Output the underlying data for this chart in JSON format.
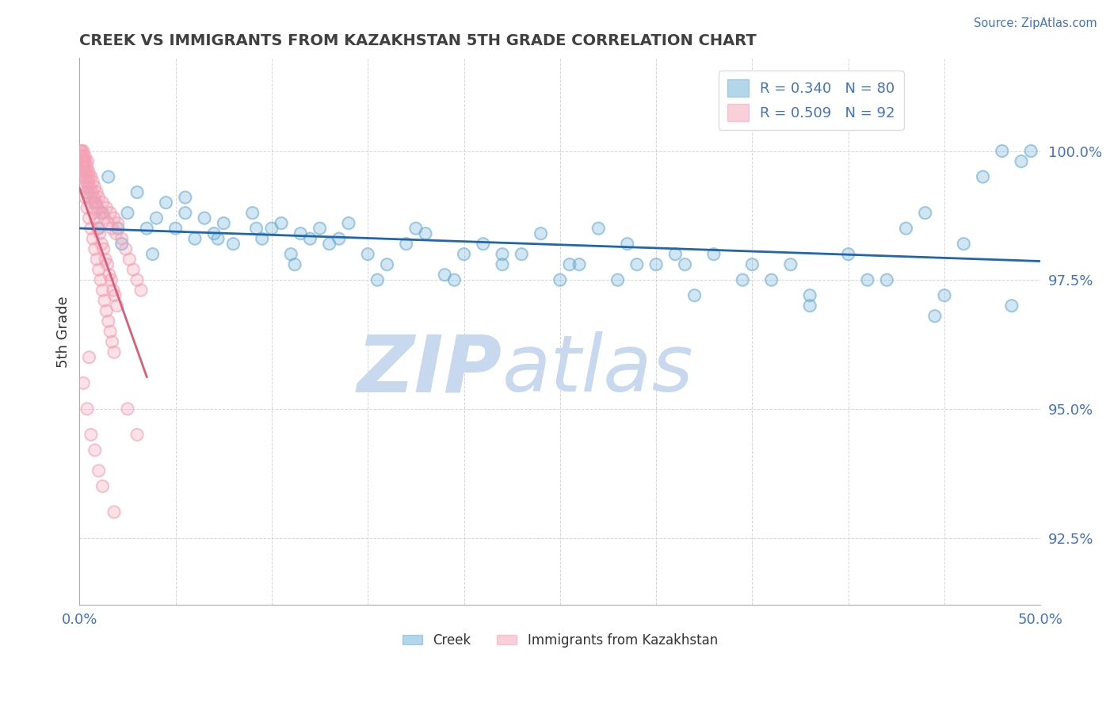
{
  "title": "CREEK VS IMMIGRANTS FROM KAZAKHSTAN 5TH GRADE CORRELATION CHART",
  "source": "Source: ZipAtlas.com",
  "ylabel": "5th Grade",
  "xlim": [
    0.0,
    50.0
  ],
  "ylim": [
    91.2,
    101.8
  ],
  "yticks": [
    92.5,
    95.0,
    97.5,
    100.0
  ],
  "ytick_labels": [
    "92.5%",
    "95.0%",
    "97.5%",
    "100.0%"
  ],
  "xticks": [
    0.0,
    5.0,
    10.0,
    15.0,
    20.0,
    25.0,
    30.0,
    35.0,
    40.0,
    45.0,
    50.0
  ],
  "xtick_labels": [
    "0.0%",
    "",
    "",
    "",
    "",
    "",
    "",
    "",
    "",
    "",
    "50.0%"
  ],
  "legend_creek_R": 0.34,
  "legend_creek_N": 80,
  "legend_kaz_R": 0.509,
  "legend_kaz_N": 92,
  "creek_color": "#6baed6",
  "kaz_color": "#f4a0b5",
  "creek_line_color": "#2166ac",
  "kaz_line_color": "#d6607a",
  "creek_scatter_x": [
    0.4,
    0.8,
    1.2,
    1.5,
    2.0,
    2.5,
    3.0,
    3.5,
    4.0,
    4.5,
    5.0,
    5.5,
    6.0,
    6.5,
    7.0,
    7.5,
    8.0,
    9.0,
    9.5,
    10.0,
    10.5,
    11.0,
    11.5,
    12.0,
    12.5,
    13.0,
    14.0,
    15.0,
    16.0,
    17.0,
    18.0,
    19.0,
    20.0,
    21.0,
    22.0,
    23.0,
    24.0,
    25.0,
    26.0,
    27.0,
    28.0,
    29.0,
    30.0,
    31.0,
    32.0,
    33.0,
    35.0,
    36.0,
    37.0,
    38.0,
    40.0,
    42.0,
    43.0,
    44.0,
    45.0,
    46.0,
    47.0,
    48.0,
    49.0,
    49.5,
    1.0,
    2.2,
    3.8,
    5.5,
    7.2,
    9.2,
    11.2,
    13.5,
    15.5,
    17.5,
    19.5,
    22.0,
    25.5,
    28.5,
    31.5,
    34.5,
    38.0,
    41.0,
    44.5,
    48.5
  ],
  "creek_scatter_y": [
    99.2,
    99.0,
    98.8,
    99.5,
    98.5,
    98.8,
    99.2,
    98.5,
    98.7,
    99.0,
    98.5,
    99.1,
    98.3,
    98.7,
    98.4,
    98.6,
    98.2,
    98.8,
    98.3,
    98.5,
    98.6,
    98.0,
    98.4,
    98.3,
    98.5,
    98.2,
    98.6,
    98.0,
    97.8,
    98.2,
    98.4,
    97.6,
    98.0,
    98.2,
    97.8,
    98.0,
    98.4,
    97.5,
    97.8,
    98.5,
    97.5,
    97.8,
    97.8,
    98.0,
    97.2,
    98.0,
    97.8,
    97.5,
    97.8,
    97.2,
    98.0,
    97.5,
    98.5,
    98.8,
    97.2,
    98.2,
    99.5,
    100.0,
    99.8,
    100.0,
    98.5,
    98.2,
    98.0,
    98.8,
    98.3,
    98.5,
    97.8,
    98.3,
    97.5,
    98.5,
    97.5,
    98.0,
    97.8,
    98.2,
    97.8,
    97.5,
    97.0,
    97.5,
    96.8,
    97.0
  ],
  "kaz_scatter_x": [
    0.05,
    0.08,
    0.1,
    0.12,
    0.15,
    0.18,
    0.2,
    0.22,
    0.25,
    0.28,
    0.3,
    0.32,
    0.35,
    0.38,
    0.4,
    0.42,
    0.45,
    0.48,
    0.5,
    0.55,
    0.6,
    0.65,
    0.7,
    0.75,
    0.8,
    0.85,
    0.9,
    0.95,
    1.0,
    1.1,
    1.2,
    1.3,
    1.4,
    1.5,
    1.6,
    1.7,
    1.8,
    1.9,
    2.0,
    2.2,
    2.4,
    2.6,
    2.8,
    3.0,
    3.2,
    0.15,
    0.25,
    0.35,
    0.45,
    0.55,
    0.65,
    0.75,
    0.85,
    0.95,
    1.05,
    1.15,
    1.25,
    1.35,
    1.45,
    1.55,
    1.65,
    1.75,
    1.85,
    1.95,
    0.1,
    0.2,
    0.3,
    0.4,
    0.5,
    0.6,
    0.7,
    0.8,
    0.9,
    1.0,
    1.1,
    1.2,
    1.3,
    1.4,
    1.5,
    1.6,
    1.7,
    1.8,
    0.2,
    0.4,
    0.6,
    0.8,
    1.0,
    1.2,
    1.8,
    2.5,
    3.0,
    0.5
  ],
  "kaz_scatter_y": [
    100.0,
    100.0,
    99.9,
    100.0,
    99.8,
    99.9,
    100.0,
    99.7,
    99.8,
    99.9,
    99.6,
    99.8,
    99.5,
    99.7,
    99.6,
    99.8,
    99.4,
    99.6,
    99.5,
    99.3,
    99.5,
    99.2,
    99.4,
    99.1,
    99.3,
    99.0,
    99.2,
    98.9,
    99.1,
    98.8,
    99.0,
    98.7,
    98.9,
    98.6,
    98.8,
    98.5,
    98.7,
    98.4,
    98.6,
    98.3,
    98.1,
    97.9,
    97.7,
    97.5,
    97.3,
    99.7,
    99.6,
    99.4,
    99.3,
    99.1,
    99.0,
    98.8,
    98.7,
    98.5,
    98.4,
    98.2,
    98.1,
    97.9,
    97.8,
    97.6,
    97.5,
    97.3,
    97.2,
    97.0,
    99.5,
    99.3,
    99.1,
    98.9,
    98.7,
    98.5,
    98.3,
    98.1,
    97.9,
    97.7,
    97.5,
    97.3,
    97.1,
    96.9,
    96.7,
    96.5,
    96.3,
    96.1,
    95.5,
    95.0,
    94.5,
    94.2,
    93.8,
    93.5,
    93.0,
    95.0,
    94.5,
    96.0
  ],
  "background_color": "#ffffff",
  "grid_color": "#cccccc",
  "axis_color": "#4472c4",
  "title_color": "#404040",
  "watermark_zip": "ZIP",
  "watermark_atlas": "atlas",
  "watermark_color_zip": "#c8d8ee",
  "watermark_color_atlas": "#c8d8ee"
}
